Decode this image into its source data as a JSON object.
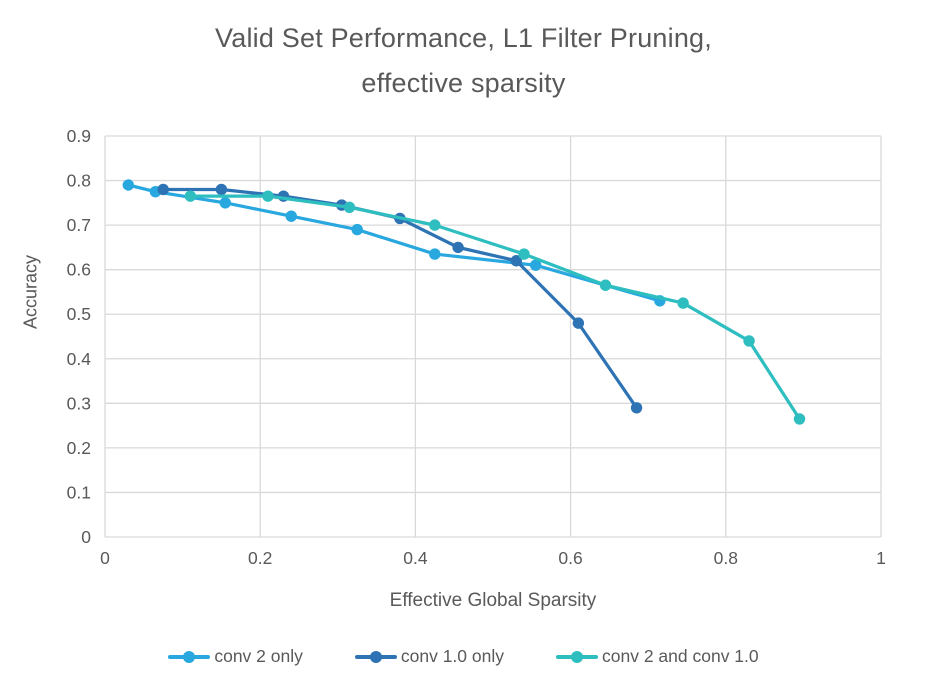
{
  "header": {
    "title_line1": "Valid Set Performance, L1 Filter Pruning,",
    "title_line2": "effective sparsity"
  },
  "theme": {
    "background": "#FFFFFF",
    "text_color": "#595959",
    "grid_color": "#D9D9D9"
  },
  "chart_data": {
    "type": "line",
    "title": "Valid Set Performance, L1 Filter Pruning, effective sparsity",
    "xlabel": "Effective Global Sparsity",
    "ylabel": "Accuracy",
    "xlim": [
      0,
      1
    ],
    "ylim": [
      0,
      0.9
    ],
    "x_ticks": [
      0,
      0.2,
      0.4,
      0.6,
      0.8,
      1
    ],
    "x_tick_labels": [
      "0",
      "0.2",
      "0.4",
      "0.6",
      "0.8",
      "1"
    ],
    "y_ticks": [
      0,
      0.1,
      0.2,
      0.3,
      0.4,
      0.5,
      0.6,
      0.7,
      0.8,
      0.9
    ],
    "y_tick_labels": [
      "0",
      "0.1",
      "0.2",
      "0.3",
      "0.4",
      "0.5",
      "0.6",
      "0.7",
      "0.8",
      "0.9"
    ],
    "grid": true,
    "legend_position": "bottom",
    "series": [
      {
        "name": "conv 2 only",
        "color": "#29A8E0",
        "points": [
          [
            0.03,
            0.79
          ],
          [
            0.065,
            0.775
          ],
          [
            0.155,
            0.75
          ],
          [
            0.24,
            0.72
          ],
          [
            0.325,
            0.69
          ],
          [
            0.425,
            0.635
          ],
          [
            0.555,
            0.61
          ],
          [
            0.715,
            0.53
          ]
        ]
      },
      {
        "name": "conv 1.0 only",
        "color": "#2E74B5",
        "points": [
          [
            0.075,
            0.78
          ],
          [
            0.15,
            0.78
          ],
          [
            0.23,
            0.765
          ],
          [
            0.305,
            0.745
          ],
          [
            0.38,
            0.715
          ],
          [
            0.455,
            0.65
          ],
          [
            0.53,
            0.62
          ],
          [
            0.61,
            0.48
          ],
          [
            0.685,
            0.29
          ]
        ]
      },
      {
        "name": "conv 2 and conv 1.0",
        "color": "#2EBEC0",
        "points": [
          [
            0.11,
            0.765
          ],
          [
            0.21,
            0.765
          ],
          [
            0.315,
            0.74
          ],
          [
            0.425,
            0.7
          ],
          [
            0.54,
            0.635
          ],
          [
            0.645,
            0.565
          ],
          [
            0.745,
            0.525
          ],
          [
            0.83,
            0.44
          ],
          [
            0.895,
            0.265
          ]
        ]
      }
    ]
  }
}
